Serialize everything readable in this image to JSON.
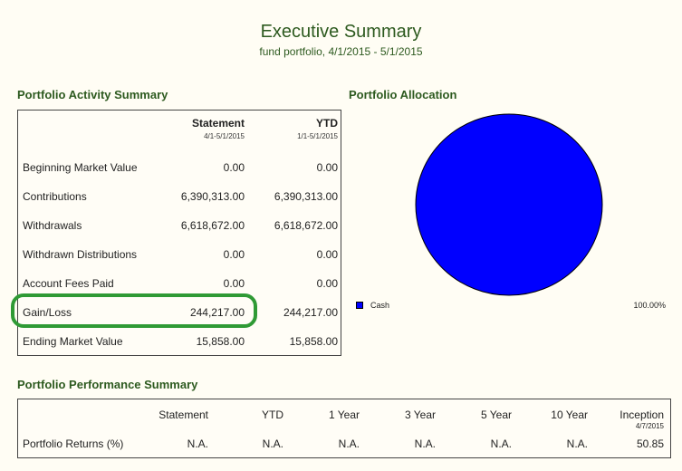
{
  "header": {
    "title": "Executive Summary",
    "subtitle": "fund portfolio, 4/1/2015 - 5/1/2015"
  },
  "activity": {
    "heading": "Portfolio Activity Summary",
    "columns": [
      {
        "label": "Statement",
        "sub": "4/1-5/1/2015"
      },
      {
        "label": "YTD",
        "sub": "1/1-5/1/2015"
      }
    ],
    "rows": [
      {
        "label": "Beginning Market Value",
        "statement": "0.00",
        "ytd": "0.00"
      },
      {
        "label": "Contributions",
        "statement": "6,390,313.00",
        "ytd": "6,390,313.00"
      },
      {
        "label": "Withdrawals",
        "statement": "6,618,672.00",
        "ytd": "6,618,672.00"
      },
      {
        "label": "Withdrawn Distributions",
        "statement": "0.00",
        "ytd": "0.00"
      },
      {
        "label": "Account Fees Paid",
        "statement": "0.00",
        "ytd": "0.00"
      },
      {
        "label": "Gain/Loss",
        "statement": "244,217.00",
        "ytd": "244,217.00"
      },
      {
        "label": "Ending Market Value",
        "statement": "15,858.00",
        "ytd": "15,858.00"
      }
    ]
  },
  "allocation": {
    "heading": "Portfolio Allocation",
    "legend": [
      {
        "label": "Cash",
        "percent": "100.00%",
        "color": "#0000ff"
      }
    ]
  },
  "performance": {
    "heading": "Portfolio Performance Summary",
    "columns": [
      {
        "label": "Statement",
        "sub": ""
      },
      {
        "label": "YTD",
        "sub": ""
      },
      {
        "label": "1 Year",
        "sub": ""
      },
      {
        "label": "3 Year",
        "sub": ""
      },
      {
        "label": "5 Year",
        "sub": ""
      },
      {
        "label": "10 Year",
        "sub": ""
      },
      {
        "label": "Inception",
        "sub": "4/7/2015"
      }
    ],
    "row_label": "Portfolio Returns (%)",
    "values": [
      "N.A.",
      "N.A.",
      "N.A.",
      "N.A.",
      "N.A.",
      "N.A.",
      "50.85"
    ]
  },
  "colors": {
    "heading_green": "#2d5a1f",
    "highlight_green": "#2f9a35",
    "cash_blue": "#0000ff"
  }
}
